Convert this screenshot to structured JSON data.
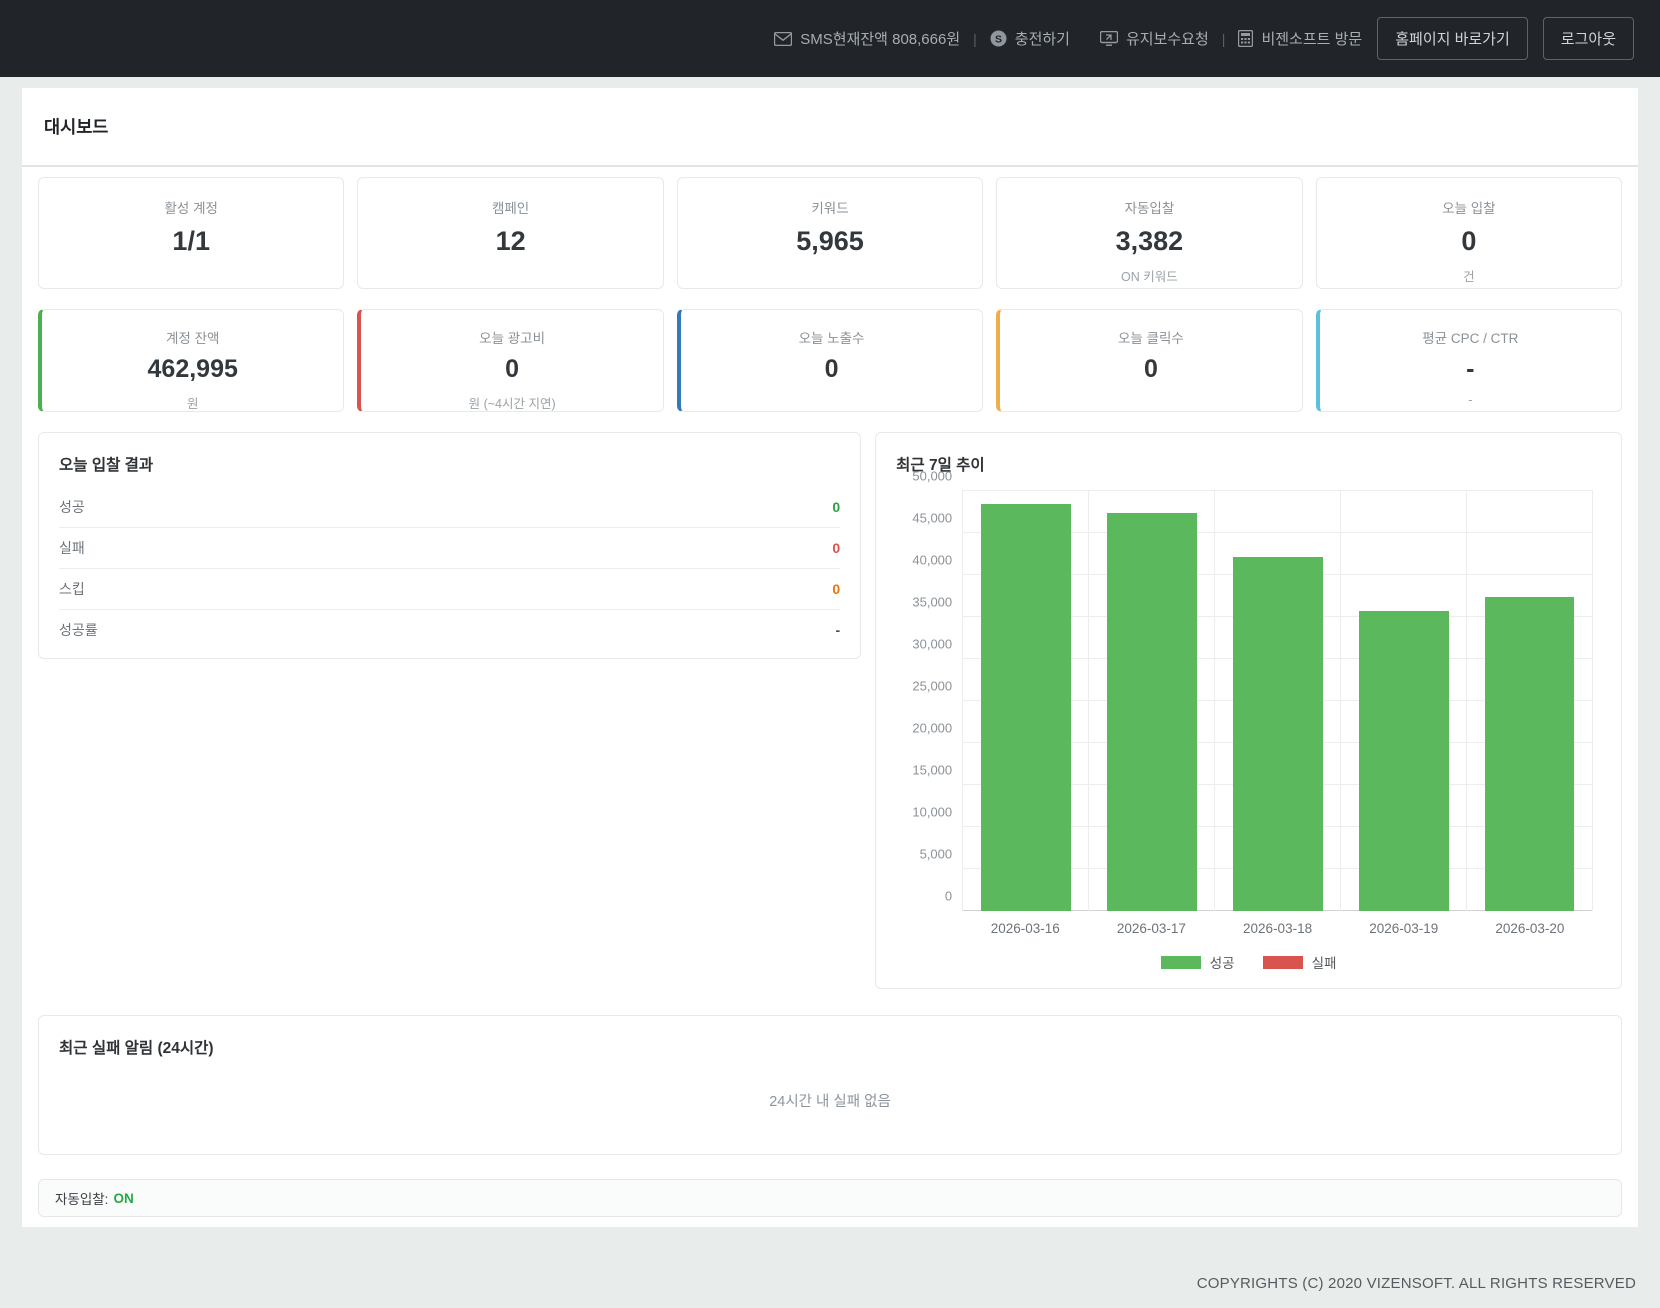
{
  "topbar": {
    "sms_label": "SMS현재잔액 808,666원",
    "separator": "|",
    "recharge": "충전하기",
    "maintenance": "유지보수요청",
    "vizensoft": "비젠소프트 방문",
    "homepage_button": "홈페이지 바로가기",
    "logout_button": "로그아웃"
  },
  "page": {
    "title": "대시보드"
  },
  "stats_row1": [
    {
      "label": "활성 계정",
      "value": "1/1",
      "sub": ""
    },
    {
      "label": "캠페인",
      "value": "12",
      "sub": ""
    },
    {
      "label": "키워드",
      "value": "5,965",
      "sub": ""
    },
    {
      "label": "자동입찰",
      "value": "3,382",
      "sub": "ON 키워드"
    },
    {
      "label": "오늘 입찰",
      "value": "0",
      "sub": "건"
    }
  ],
  "stats_row2": [
    {
      "label": "계정 잔액",
      "value": "462,995",
      "sub": "원",
      "accent": "#4caf50"
    },
    {
      "label": "오늘 광고비",
      "value": "0",
      "sub": "원 (~4시간 지연)",
      "accent": "#d9534f"
    },
    {
      "label": "오늘 노출수",
      "value": "0",
      "sub": "",
      "accent": "#337ab7"
    },
    {
      "label": "오늘 클릭수",
      "value": "0",
      "sub": "",
      "accent": "#f0ad4e"
    },
    {
      "label": "평균 CPC / CTR",
      "value": "-",
      "sub": "-",
      "accent": "#5bc0de"
    }
  ],
  "bid_results": {
    "title": "오늘 입찰 결과",
    "rows": [
      {
        "label": "성공",
        "value": "0",
        "color": "#2e9e44"
      },
      {
        "label": "실패",
        "value": "0",
        "color": "#d9534f"
      },
      {
        "label": "스킵",
        "value": "0",
        "color": "#e8740c"
      },
      {
        "label": "성공률",
        "value": "-",
        "color": "#495057"
      }
    ]
  },
  "chart_data": {
    "type": "bar",
    "title": "최근 7일 추이",
    "categories": [
      "2026-03-16",
      "2026-03-17",
      "2026-03-18",
      "2026-03-19",
      "2026-03-20"
    ],
    "series": [
      {
        "name": "성공",
        "color": "#5cb85c",
        "values": [
          48500,
          47400,
          42200,
          35700,
          37400
        ]
      },
      {
        "name": "실패",
        "color": "#d9534f",
        "values": [
          0,
          0,
          0,
          0,
          0
        ]
      }
    ],
    "xlabel": "",
    "ylabel": "",
    "ylim": [
      0,
      50000
    ],
    "ytick_step": 5000,
    "grid": true,
    "legend_position": "bottom"
  },
  "failure_panel": {
    "title": "최근 실패 알림 (24시간)",
    "empty_message": "24시간 내 실패 없음"
  },
  "autobid_panel": {
    "label": "자동입찰:",
    "status": "ON",
    "status_color": "#28a745"
  },
  "footer": {
    "copyright": "COPYRIGHTS (C) 2020 VIZENSOFT. ALL RIGHTS RESERVED"
  }
}
